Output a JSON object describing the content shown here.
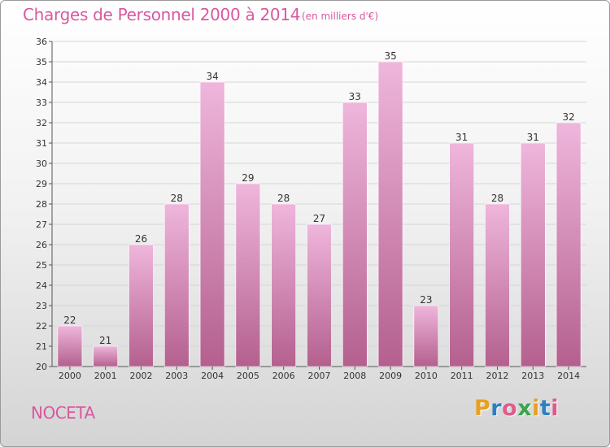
{
  "header": {
    "title": "Charges de Personnel 2000 à 2014",
    "subtitle": "(en milliers d'€)"
  },
  "footer": {
    "commune": "NOCETA",
    "logo_letters": [
      "P",
      "r",
      "o",
      "x",
      "i",
      "t",
      "i"
    ],
    "logo_colors": [
      "#e8a020",
      "#2e7fc0",
      "#e05a8c",
      "#3aa54a",
      "#e8a020",
      "#2e7fc0",
      "#e05a8c"
    ]
  },
  "colors": {
    "bar_light": "#efb6dc",
    "bar_dark": "#b4608e",
    "text": "#d9589f",
    "grid": "#d6d6d6"
  },
  "chart_data": {
    "type": "bar",
    "title": "Charges de Personnel 2000 à 2014",
    "subtitle": "(en milliers d'€)",
    "categories": [
      "2000",
      "2001",
      "2002",
      "2003",
      "2004",
      "2005",
      "2006",
      "2007",
      "2008",
      "2009",
      "2010",
      "2011",
      "2012",
      "2013",
      "2014"
    ],
    "values": [
      22,
      21,
      26,
      28,
      34,
      29,
      28,
      27,
      33,
      35,
      23,
      31,
      28,
      31,
      32
    ],
    "ylim": [
      20,
      36
    ],
    "yticks": [
      20,
      21,
      22,
      23,
      24,
      25,
      26,
      27,
      28,
      29,
      30,
      31,
      32,
      33,
      34,
      35,
      36
    ],
    "grid": true,
    "xlabel": "",
    "ylabel": ""
  }
}
